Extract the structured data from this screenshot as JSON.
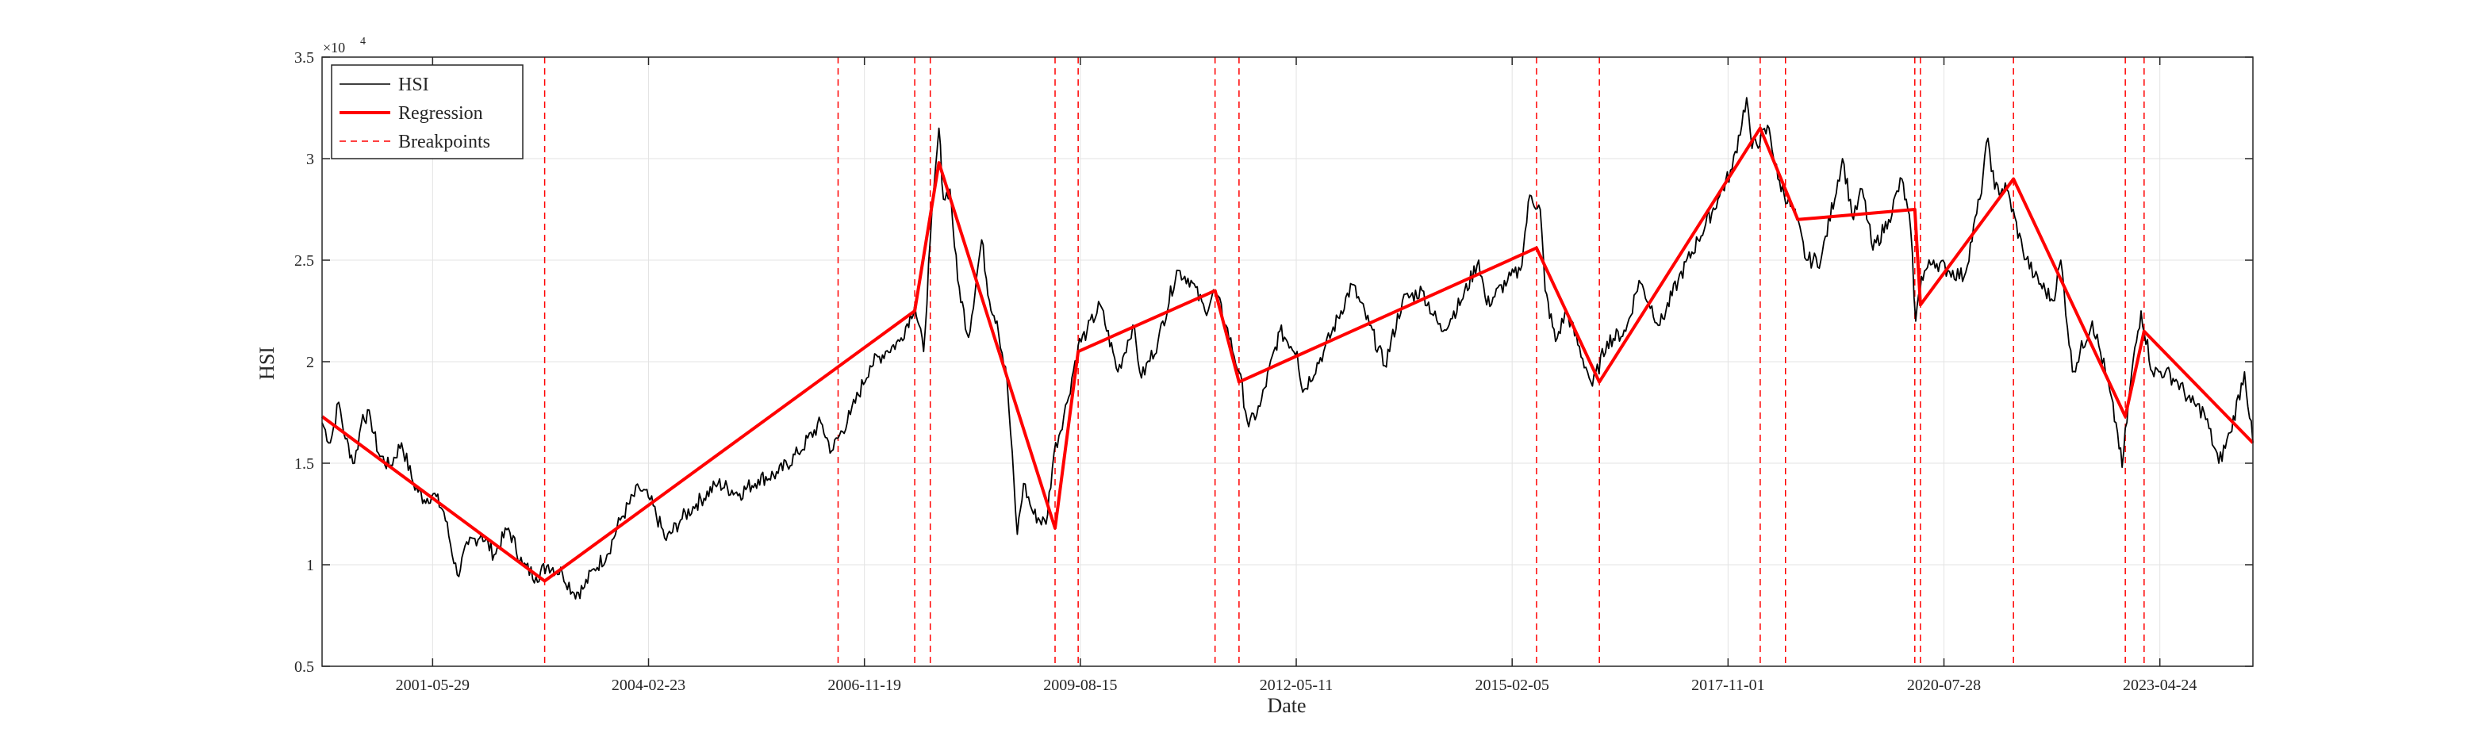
{
  "chart_data": {
    "type": "line",
    "title": "",
    "xlabel": "Date",
    "ylabel": "HSI",
    "y_exponent_label": "×10",
    "y_exponent_power": "4",
    "xlim": [
      "2000-01-03",
      "2024-06-28"
    ],
    "ylim": [
      0.5,
      3.5
    ],
    "y_unit_multiplier": 10000,
    "grid": true,
    "legend_position": "top-left",
    "x_ticks": [
      {
        "date": "2001-05-29",
        "label": "2001-05-29"
      },
      {
        "date": "2004-02-23",
        "label": "2004-02-23"
      },
      {
        "date": "2006-11-19",
        "label": "2006-11-19"
      },
      {
        "date": "2009-08-15",
        "label": "2009-08-15"
      },
      {
        "date": "2012-05-11",
        "label": "2012-05-11"
      },
      {
        "date": "2015-02-05",
        "label": "2015-02-05"
      },
      {
        "date": "2017-11-01",
        "label": "2017-11-01"
      },
      {
        "date": "2020-07-28",
        "label": "2020-07-28"
      },
      {
        "date": "2023-04-24",
        "label": "2023-04-24"
      }
    ],
    "y_ticks": [
      {
        "value": 0.5,
        "label": "0.5"
      },
      {
        "value": 1,
        "label": "1"
      },
      {
        "value": 1.5,
        "label": "1.5"
      },
      {
        "value": 2,
        "label": "2"
      },
      {
        "value": 2.5,
        "label": "2.5"
      },
      {
        "value": 3,
        "label": "3"
      },
      {
        "value": 3.5,
        "label": "3.5"
      }
    ],
    "legend": [
      {
        "name": "HSI",
        "color": "#000000",
        "style": "solid"
      },
      {
        "name": "Regression",
        "color": "#ff0000",
        "style": "thick"
      },
      {
        "name": "Breakpoints",
        "color": "#ff0000",
        "style": "dashed"
      }
    ],
    "series": [
      {
        "name": "HSI",
        "color": "#000000",
        "points": [
          [
            "2000-01-03",
            1.7
          ],
          [
            "2000-02-10",
            1.6
          ],
          [
            "2000-03-20",
            1.8
          ],
          [
            "2000-04-20",
            1.62
          ],
          [
            "2000-06-01",
            1.5
          ],
          [
            "2000-07-10",
            1.74
          ],
          [
            "2000-08-15",
            1.72
          ],
          [
            "2000-09-20",
            1.55
          ],
          [
            "2000-11-10",
            1.48
          ],
          [
            "2001-01-05",
            1.6
          ],
          [
            "2001-03-01",
            1.4
          ],
          [
            "2001-04-20",
            1.32
          ],
          [
            "2001-06-01",
            1.35
          ],
          [
            "2001-07-20",
            1.26
          ],
          [
            "2001-09-20",
            0.95
          ],
          [
            "2001-11-10",
            1.1
          ],
          [
            "2002-01-10",
            1.15
          ],
          [
            "2002-03-10",
            1.05
          ],
          [
            "2002-05-15",
            1.18
          ],
          [
            "2002-07-20",
            1.0
          ],
          [
            "2002-09-20",
            0.94
          ],
          [
            "2002-11-15",
            1.0
          ],
          [
            "2003-01-20",
            0.96
          ],
          [
            "2003-03-15",
            0.86
          ],
          [
            "2003-04-25",
            0.88
          ],
          [
            "2003-06-15",
            0.98
          ],
          [
            "2003-08-15",
            1.05
          ],
          [
            "2003-10-15",
            1.22
          ],
          [
            "2004-01-10",
            1.38
          ],
          [
            "2004-03-01",
            1.32
          ],
          [
            "2004-05-15",
            1.12
          ],
          [
            "2004-07-20",
            1.22
          ],
          [
            "2004-10-01",
            1.3
          ],
          [
            "2005-01-10",
            1.4
          ],
          [
            "2005-04-20",
            1.35
          ],
          [
            "2005-07-15",
            1.42
          ],
          [
            "2005-10-15",
            1.45
          ],
          [
            "2006-01-15",
            1.55
          ],
          [
            "2006-05-01",
            1.7
          ],
          [
            "2006-06-20",
            1.56
          ],
          [
            "2006-09-15",
            1.74
          ],
          [
            "2006-12-15",
            1.98
          ],
          [
            "2007-02-25",
            2.05
          ],
          [
            "2007-05-01",
            2.1
          ],
          [
            "2007-07-10",
            2.28
          ],
          [
            "2007-08-20",
            2.05
          ],
          [
            "2007-09-20",
            2.6
          ],
          [
            "2007-10-30",
            3.15
          ],
          [
            "2007-11-20",
            2.8
          ],
          [
            "2007-12-20",
            2.85
          ],
          [
            "2008-01-25",
            2.4
          ],
          [
            "2008-03-15",
            2.12
          ],
          [
            "2008-05-15",
            2.6
          ],
          [
            "2008-06-20",
            2.3
          ],
          [
            "2008-07-25",
            2.2
          ],
          [
            "2008-09-10",
            1.9
          ],
          [
            "2008-10-27",
            1.15
          ],
          [
            "2008-11-25",
            1.4
          ],
          [
            "2009-01-10",
            1.25
          ],
          [
            "2009-03-09",
            1.2
          ],
          [
            "2009-04-15",
            1.55
          ],
          [
            "2009-06-15",
            1.8
          ],
          [
            "2009-08-05",
            2.08
          ],
          [
            "2009-09-15",
            2.15
          ],
          [
            "2009-11-15",
            2.28
          ],
          [
            "2010-02-05",
            1.95
          ],
          [
            "2010-04-15",
            2.18
          ],
          [
            "2010-05-25",
            1.92
          ],
          [
            "2010-08-10",
            2.1
          ],
          [
            "2010-11-05",
            2.45
          ],
          [
            "2011-01-10",
            2.4
          ],
          [
            "2011-03-15",
            2.25
          ],
          [
            "2011-05-01",
            2.35
          ],
          [
            "2011-06-20",
            2.18
          ],
          [
            "2011-08-20",
            1.95
          ],
          [
            "2011-10-04",
            1.68
          ],
          [
            "2011-11-25",
            1.78
          ],
          [
            "2012-02-25",
            2.15
          ],
          [
            "2012-05-15",
            2.05
          ],
          [
            "2012-06-10",
            1.85
          ],
          [
            "2012-09-15",
            2.05
          ],
          [
            "2013-01-25",
            2.38
          ],
          [
            "2013-04-15",
            2.18
          ],
          [
            "2013-06-25",
            1.98
          ],
          [
            "2013-09-15",
            2.3
          ],
          [
            "2013-12-15",
            2.35
          ],
          [
            "2014-03-15",
            2.15
          ],
          [
            "2014-06-15",
            2.3
          ],
          [
            "2014-09-03",
            2.5
          ],
          [
            "2014-10-10",
            2.28
          ],
          [
            "2015-01-15",
            2.4
          ],
          [
            "2015-03-15",
            2.45
          ],
          [
            "2015-04-28",
            2.82
          ],
          [
            "2015-06-15",
            2.75
          ],
          [
            "2015-07-08",
            2.35
          ],
          [
            "2015-08-25",
            2.1
          ],
          [
            "2015-10-15",
            2.25
          ],
          [
            "2016-01-20",
            1.95
          ],
          [
            "2016-02-12",
            1.88
          ],
          [
            "2016-04-20",
            2.1
          ],
          [
            "2016-07-15",
            2.15
          ],
          [
            "2016-09-15",
            2.4
          ],
          [
            "2016-12-20",
            2.18
          ],
          [
            "2017-03-15",
            2.4
          ],
          [
            "2017-06-15",
            2.6
          ],
          [
            "2017-09-15",
            2.8
          ],
          [
            "2017-11-20",
            2.95
          ],
          [
            "2018-01-26",
            3.3
          ],
          [
            "2018-02-20",
            3.05
          ],
          [
            "2018-05-10",
            3.15
          ],
          [
            "2018-06-20",
            2.9
          ],
          [
            "2018-09-15",
            2.7
          ],
          [
            "2018-10-30",
            2.5
          ],
          [
            "2019-01-05",
            2.5
          ],
          [
            "2019-04-15",
            3.0
          ],
          [
            "2019-06-05",
            2.7
          ],
          [
            "2019-07-15",
            2.85
          ],
          [
            "2019-09-03",
            2.55
          ],
          [
            "2019-11-15",
            2.7
          ],
          [
            "2020-01-15",
            2.9
          ],
          [
            "2020-02-25",
            2.65
          ],
          [
            "2020-03-19",
            2.2
          ],
          [
            "2020-04-15",
            2.42
          ],
          [
            "2020-06-10",
            2.5
          ],
          [
            "2020-08-15",
            2.45
          ],
          [
            "2020-10-30",
            2.42
          ],
          [
            "2021-01-10",
            2.8
          ],
          [
            "2021-02-17",
            3.1
          ],
          [
            "2021-03-20",
            2.85
          ],
          [
            "2021-05-15",
            2.85
          ],
          [
            "2021-07-28",
            2.55
          ],
          [
            "2021-09-20",
            2.42
          ],
          [
            "2021-12-15",
            2.3
          ],
          [
            "2022-01-20",
            2.5
          ],
          [
            "2022-03-15",
            1.95
          ],
          [
            "2022-06-15",
            2.2
          ],
          [
            "2022-08-15",
            1.95
          ],
          [
            "2022-10-10",
            1.65
          ],
          [
            "2022-10-31",
            1.48
          ],
          [
            "2022-12-15",
            1.95
          ],
          [
            "2023-01-27",
            2.25
          ],
          [
            "2023-03-20",
            1.95
          ],
          [
            "2023-05-20",
            1.95
          ],
          [
            "2023-07-15",
            1.9
          ],
          [
            "2023-09-15",
            1.8
          ],
          [
            "2023-11-15",
            1.75
          ],
          [
            "2024-01-22",
            1.5
          ],
          [
            "2024-03-15",
            1.65
          ],
          [
            "2024-05-20",
            1.95
          ],
          [
            "2024-06-28",
            1.6
          ]
        ]
      },
      {
        "name": "Regression",
        "color": "#ff0000",
        "points": [
          [
            "2000-01-03",
            1.73
          ],
          [
            "2002-10-30",
            0.92
          ],
          [
            "2007-07-10",
            2.25
          ],
          [
            "2007-10-30",
            2.98
          ],
          [
            "2009-04-20",
            1.18
          ],
          [
            "2009-08-05",
            2.05
          ],
          [
            "2011-05-01",
            2.35
          ],
          [
            "2011-08-20",
            1.9
          ],
          [
            "2015-05-29",
            2.56
          ],
          [
            "2016-03-15",
            1.9
          ],
          [
            "2018-03-30",
            3.15
          ],
          [
            "2018-09-20",
            2.7
          ],
          [
            "2020-03-15",
            2.75
          ],
          [
            "2020-04-10",
            2.28
          ],
          [
            "2021-06-15",
            2.9
          ],
          [
            "2022-11-15",
            1.73
          ],
          [
            "2023-02-10",
            2.15
          ],
          [
            "2024-06-28",
            1.6
          ]
        ]
      }
    ],
    "breakpoints": [
      "2002-10-30",
      "2006-07-20",
      "2007-07-10",
      "2007-09-20",
      "2009-04-20",
      "2009-08-05",
      "2011-05-01",
      "2011-08-20",
      "2015-05-29",
      "2016-03-15",
      "2018-03-30",
      "2018-07-25",
      "2020-03-15",
      "2020-04-10",
      "2021-06-15",
      "2022-11-15",
      "2023-02-10"
    ]
  }
}
